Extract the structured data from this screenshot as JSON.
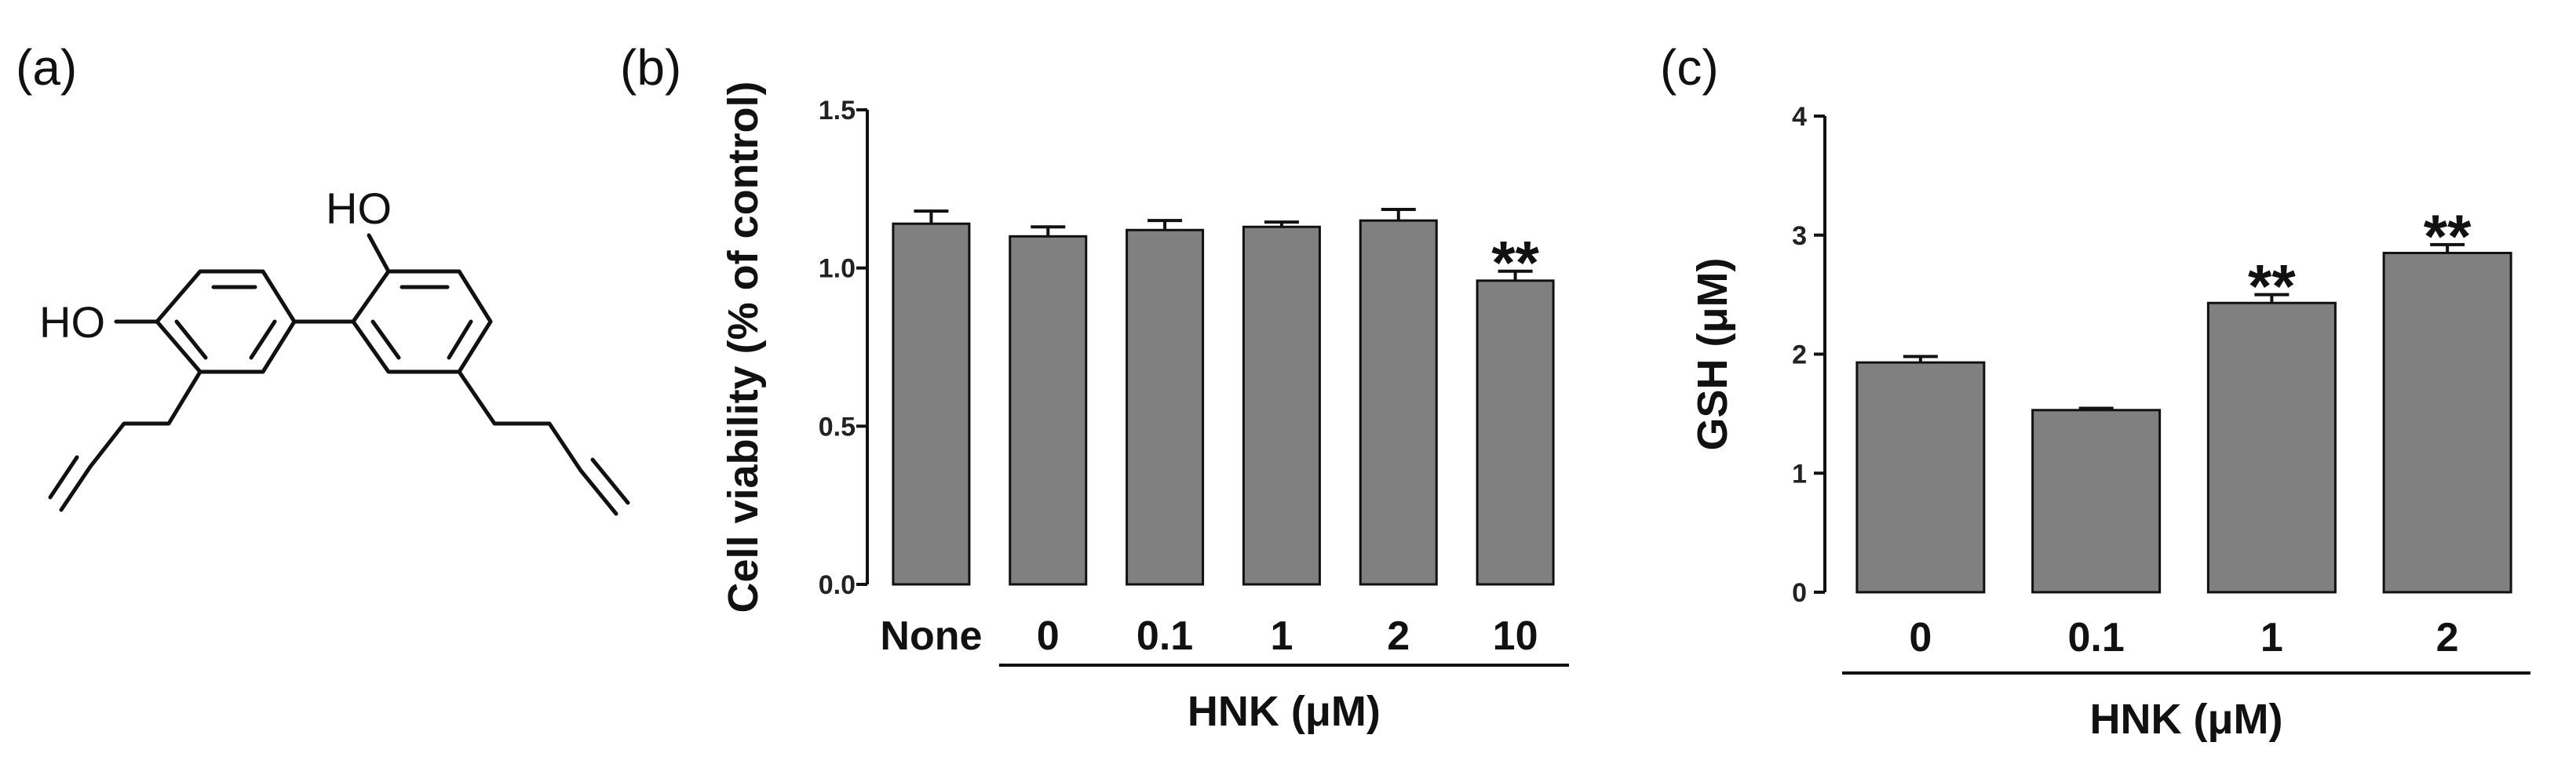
{
  "panels": {
    "a": "(a)",
    "b": "(b)",
    "c": "(c)"
  },
  "structure": {
    "atoms": [
      "HO",
      "HO"
    ]
  },
  "chart_data": [
    {
      "type": "bar",
      "panel": "(b)",
      "categories": [
        "None",
        "0",
        "0.1",
        "1",
        "2",
        "10"
      ],
      "values": [
        1.14,
        1.1,
        1.12,
        1.13,
        1.15,
        0.96
      ],
      "errors": [
        0.04,
        0.03,
        0.03,
        0.015,
        0.035,
        0.03
      ],
      "significance": [
        "",
        "",
        "",
        "",
        "",
        "**"
      ],
      "ylabel": "Cell viability (% of control)",
      "xlabel": "HNK (μM)",
      "group_bar_start": 1,
      "ylim": [
        0,
        1.5
      ],
      "yticks": [
        0.0,
        0.5,
        1.0,
        1.5
      ],
      "ytick_labels": [
        "0.0",
        "0.5",
        "1.0",
        "1.5"
      ],
      "bar_color": "#808080",
      "grid": false
    },
    {
      "type": "bar",
      "panel": "(c)",
      "categories": [
        "0",
        "0.1",
        "1",
        "2"
      ],
      "values": [
        1.93,
        1.53,
        2.43,
        2.85
      ],
      "errors": [
        0.05,
        0.015,
        0.07,
        0.07
      ],
      "significance": [
        "",
        "",
        "**",
        "**"
      ],
      "ylabel": "GSH (μM)",
      "xlabel": "HNK (μM)",
      "group_bar_start": 0,
      "ylim": [
        0,
        4
      ],
      "yticks": [
        0,
        1,
        2,
        3,
        4
      ],
      "ytick_labels": [
        "0",
        "1",
        "2",
        "3",
        "4"
      ],
      "bar_color": "#808080",
      "grid": false
    }
  ]
}
